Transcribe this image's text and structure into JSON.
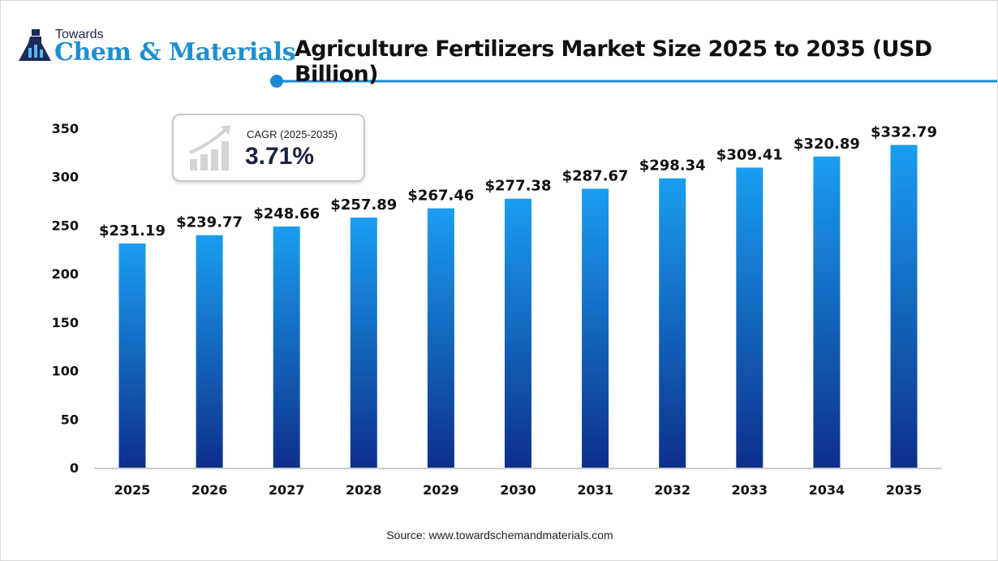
{
  "logo": {
    "line1": "Towards",
    "line2": "Chem & Materials"
  },
  "cagr": {
    "label": "CAGR (2025-2035)",
    "value": "3.71%"
  },
  "source": "Source: www.towardschemandmaterials.com",
  "colors": {
    "bar_top": "#1a9ef0",
    "bar_bottom": "#0d2f8c",
    "accent": "#1a8ad4"
  },
  "chart_data": {
    "type": "bar",
    "title": "Agriculture Fertilizers Market Size 2025 to 2035 (USD Billion)",
    "xlabel": "",
    "ylabel": "",
    "categories": [
      "2025",
      "2026",
      "2027",
      "2028",
      "2029",
      "2030",
      "2031",
      "2032",
      "2033",
      "2034",
      "2035"
    ],
    "values": [
      231.19,
      239.77,
      248.66,
      257.89,
      267.46,
      277.38,
      287.67,
      298.34,
      309.41,
      320.89,
      332.79
    ],
    "data_labels": [
      "$231.19",
      "$239.77",
      "$248.66",
      "$257.89",
      "$267.46",
      "$277.38",
      "$287.67",
      "$298.34",
      "$309.41",
      "$320.89",
      "$332.79"
    ],
    "yticks": [
      0,
      50,
      100,
      150,
      200,
      250,
      300,
      350
    ],
    "ylim": [
      0,
      350
    ],
    "grid": false,
    "legend": "none"
  }
}
